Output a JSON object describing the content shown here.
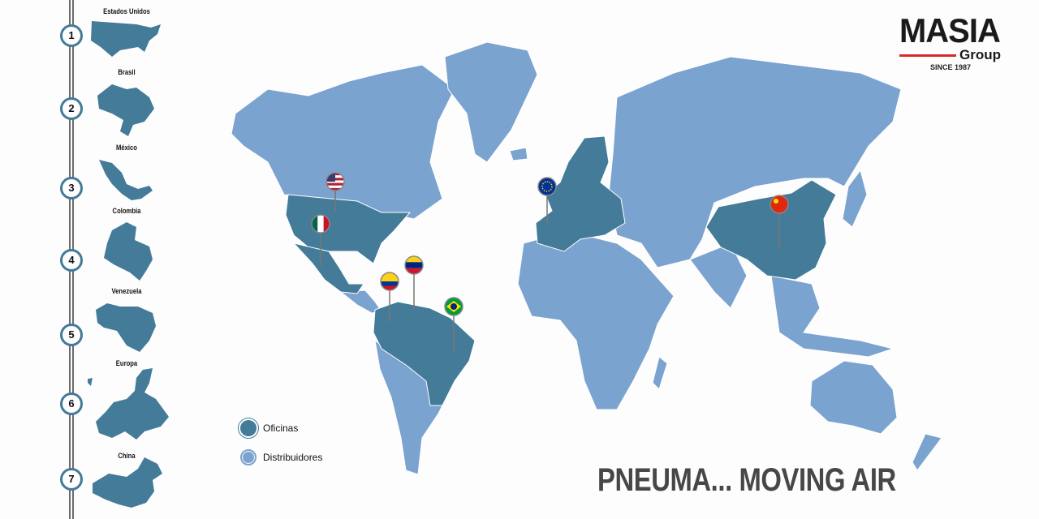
{
  "colors": {
    "offices": "#437b99",
    "distributors": "#7ba3cf",
    "rail": "#6b6b6b",
    "logo_accent": "#d62b2b"
  },
  "countries": [
    {
      "number": "1",
      "name": "Estados Unidos",
      "flag": "us-flag-icon"
    },
    {
      "number": "2",
      "name": "Brasil",
      "flag": "brazil-flag-icon"
    },
    {
      "number": "3",
      "name": "México",
      "flag": "mexico-flag-icon"
    },
    {
      "number": "4",
      "name": "Colombia",
      "flag": "colombia-flag-icon"
    },
    {
      "number": "5",
      "name": "Venezuela",
      "flag": "venezuela-flag-icon"
    },
    {
      "number": "6",
      "name": "Europa",
      "flag": "eu-flag-icon"
    },
    {
      "number": "7",
      "name": "China",
      "flag": "china-flag-icon"
    }
  ],
  "legend": {
    "offices": "Oficinas",
    "distributors": "Distribuidores"
  },
  "logo": {
    "name": "MASIA",
    "sub": "Group",
    "since": "SINCE 1987"
  },
  "slogan": "PNEUMA... MOVING AIR"
}
